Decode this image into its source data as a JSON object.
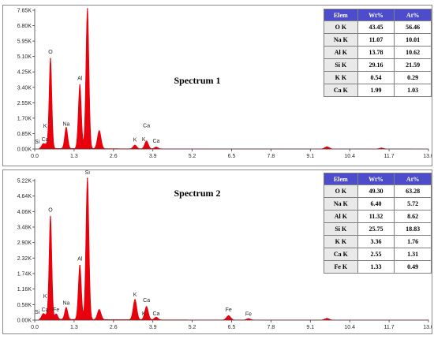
{
  "colors": {
    "spectrum": "#e8000c",
    "header": "#4d4dcc",
    "axis": "#404040"
  },
  "chart_data": [
    {
      "type": "line",
      "title": "Spectrum 1",
      "xlabel": "",
      "ylabel": "",
      "xlim": [
        0,
        13.0
      ],
      "ylim": [
        0,
        7650
      ],
      "x_ticks": [
        "0.0",
        "1.3",
        "2.6",
        "3.9",
        "5.2",
        "6.5",
        "7.8",
        "9.1",
        "10.4",
        "11.7",
        "13.0"
      ],
      "y_ticks": [
        "0.00K",
        "0.85K",
        "1.70K",
        "2.55K",
        "3.40K",
        "4.25K",
        "5.10K",
        "5.95K",
        "6.80K",
        "7.65K"
      ],
      "peaks": [
        {
          "x": 0.28,
          "y": 250,
          "w": 0.05
        },
        {
          "x": 0.39,
          "y": 200,
          "w": 0.05
        },
        {
          "x": 0.52,
          "y": 4980,
          "w": 0.045
        },
        {
          "x": 1.04,
          "y": 1170,
          "w": 0.05
        },
        {
          "x": 1.49,
          "y": 3530,
          "w": 0.05
        },
        {
          "x": 1.74,
          "y": 7730,
          "w": 0.05
        },
        {
          "x": 2.13,
          "y": 1000,
          "w": 0.06
        },
        {
          "x": 3.31,
          "y": 200,
          "w": 0.06
        },
        {
          "x": 3.69,
          "y": 430,
          "w": 0.06
        },
        {
          "x": 4.01,
          "y": 100,
          "w": 0.06
        },
        {
          "x": 9.65,
          "y": 120,
          "w": 0.08
        },
        {
          "x": 11.45,
          "y": 50,
          "w": 0.08
        }
      ],
      "labels": [
        {
          "text": "Si",
          "x": 0.08,
          "y": 310
        },
        {
          "text": "Ca",
          "x": 0.34,
          "y": 430
        },
        {
          "text": "K",
          "x": 0.34,
          "y": 1180
        },
        {
          "text": "O",
          "x": 0.52,
          "y": 5260
        },
        {
          "text": "Na",
          "x": 1.04,
          "y": 1280
        },
        {
          "text": "Al",
          "x": 1.49,
          "y": 3800
        },
        {
          "text": "Si",
          "x": 1.74,
          "y": 7940
        },
        {
          "text": "K",
          "x": 3.31,
          "y": 420
        },
        {
          "text": "K",
          "x": 3.6,
          "y": 430
        },
        {
          "text": "Ca",
          "x": 3.69,
          "y": 1200
        },
        {
          "text": "Ca",
          "x": 4.01,
          "y": 350
        }
      ],
      "table": {
        "headers": [
          "Elem",
          "Wt%",
          "At%"
        ],
        "rows": [
          [
            "O K",
            "43.45",
            "56.46"
          ],
          [
            "Na K",
            "11.07",
            "10.01"
          ],
          [
            "Al  K",
            "13.78",
            "10.62"
          ],
          [
            "Si K",
            "29.16",
            "21.59"
          ],
          [
            "K K",
            "0.54",
            "0.29"
          ],
          [
            "Ca K",
            "1.99",
            "1.03"
          ]
        ]
      }
    },
    {
      "type": "line",
      "title": "Spectrum 2",
      "xlabel": "",
      "ylabel": "",
      "xlim": [
        0,
        13.0
      ],
      "ylim": [
        0,
        5220
      ],
      "x_ticks": [
        "0.0",
        "1.3",
        "2.6",
        "3.9",
        "5.2",
        "6.5",
        "7.8",
        "9.1",
        "10.4",
        "11.7",
        "13.0"
      ],
      "y_ticks": [
        "0.00K",
        "0.58K",
        "1.16K",
        "1.74K",
        "2.32K",
        "2.90K",
        "3.48K",
        "4.06K",
        "4.64K",
        "5.22K"
      ],
      "peaks": [
        {
          "x": 0.28,
          "y": 200,
          "w": 0.05
        },
        {
          "x": 0.4,
          "y": 150,
          "w": 0.05
        },
        {
          "x": 0.52,
          "y": 3860,
          "w": 0.045
        },
        {
          "x": 0.71,
          "y": 200,
          "w": 0.05
        },
        {
          "x": 1.04,
          "y": 450,
          "w": 0.05
        },
        {
          "x": 1.49,
          "y": 2040,
          "w": 0.05
        },
        {
          "x": 1.74,
          "y": 5300,
          "w": 0.05
        },
        {
          "x": 2.13,
          "y": 380,
          "w": 0.06
        },
        {
          "x": 3.31,
          "y": 760,
          "w": 0.06
        },
        {
          "x": 3.69,
          "y": 500,
          "w": 0.06
        },
        {
          "x": 4.01,
          "y": 100,
          "w": 0.06
        },
        {
          "x": 6.4,
          "y": 160,
          "w": 0.07
        },
        {
          "x": 7.06,
          "y": 50,
          "w": 0.07
        },
        {
          "x": 9.65,
          "y": 60,
          "w": 0.08
        }
      ],
      "labels": [
        {
          "text": "Si",
          "x": 0.08,
          "y": 240
        },
        {
          "text": "Ca",
          "x": 0.34,
          "y": 330
        },
        {
          "text": "K",
          "x": 0.34,
          "y": 830
        },
        {
          "text": "Fe",
          "x": 0.71,
          "y": 330
        },
        {
          "text": "O",
          "x": 0.52,
          "y": 4060
        },
        {
          "text": "Na",
          "x": 1.04,
          "y": 580
        },
        {
          "text": "Al",
          "x": 1.49,
          "y": 2220
        },
        {
          "text": "Si",
          "x": 1.74,
          "y": 5450
        },
        {
          "text": "K",
          "x": 3.31,
          "y": 880
        },
        {
          "text": "Ca",
          "x": 3.69,
          "y": 680
        },
        {
          "text": "K",
          "x": 3.6,
          "y": 180
        },
        {
          "text": "Ca",
          "x": 4.01,
          "y": 180
        },
        {
          "text": "Fe",
          "x": 6.4,
          "y": 330
        },
        {
          "text": "Fe",
          "x": 7.06,
          "y": 160
        }
      ],
      "table": {
        "headers": [
          "Elem",
          "Wt%",
          "At%"
        ],
        "rows": [
          [
            "O K",
            "49.30",
            "63.28"
          ],
          [
            "Na K",
            "6.40",
            "5.72"
          ],
          [
            "Al K",
            "11.32",
            "8.62"
          ],
          [
            "Si K",
            "25.75",
            "18.83"
          ],
          [
            "K K",
            "3.36",
            "1.76"
          ],
          [
            "Ca K",
            "2.55",
            "1.31"
          ],
          [
            "Fe K",
            "1.33",
            "0.49"
          ]
        ]
      }
    }
  ]
}
